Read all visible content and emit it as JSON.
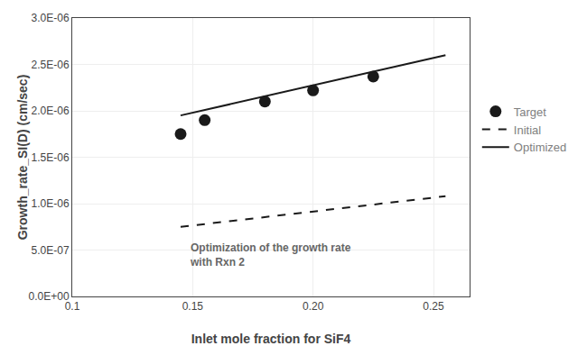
{
  "chart_data": {
    "type": "line",
    "xlabel": "Inlet mole fraction for SiF4",
    "ylabel": "Growth_rate_SI(D) (cm/sec)",
    "series": [
      {
        "name": "Target",
        "type": "scatter",
        "marker": "circle",
        "color": "#1a1a1a",
        "x": [
          0.145,
          0.155,
          0.18,
          0.2,
          0.225
        ],
        "values": [
          1.75e-06,
          1.9e-06,
          2.1e-06,
          2.22e-06,
          2.37e-06
        ]
      },
      {
        "name": "Initial",
        "type": "line",
        "line_style": "dashed",
        "color": "#1a1a1a",
        "x": [
          0.145,
          0.255
        ],
        "values": [
          7.5e-07,
          1.08e-06
        ]
      },
      {
        "name": "Optimized",
        "type": "line",
        "line_style": "solid",
        "color": "#1a1a1a",
        "x": [
          0.145,
          0.255
        ],
        "values": [
          1.95e-06,
          2.6e-06
        ]
      }
    ],
    "annotations": [
      {
        "text": "Optimization of the growth rate\nwith Rxn 2",
        "x": 0.148,
        "y": 2.8e-07
      }
    ],
    "xlim": [
      0.1,
      0.265
    ],
    "xticks": [
      0.1,
      0.15,
      {
        "value": 0.2,
        "label": "0.20"
      },
      0.25
    ],
    "ylim": [
      0.0,
      3e-06
    ],
    "yticks": [
      {
        "value": 0.0,
        "label": "0.0E+00"
      },
      {
        "value": 5e-07,
        "label": "5.0E-07"
      },
      {
        "value": 1e-06,
        "label": "1.0E-06"
      },
      {
        "value": 1.5e-06,
        "label": "1.5E-06"
      },
      {
        "value": 2e-06,
        "label": "2.0E-06"
      },
      {
        "value": 2.5e-06,
        "label": "2.5E-06"
      },
      {
        "value": 3e-06,
        "label": "3.0E-06"
      }
    ],
    "grid": true,
    "legend": "right"
  }
}
